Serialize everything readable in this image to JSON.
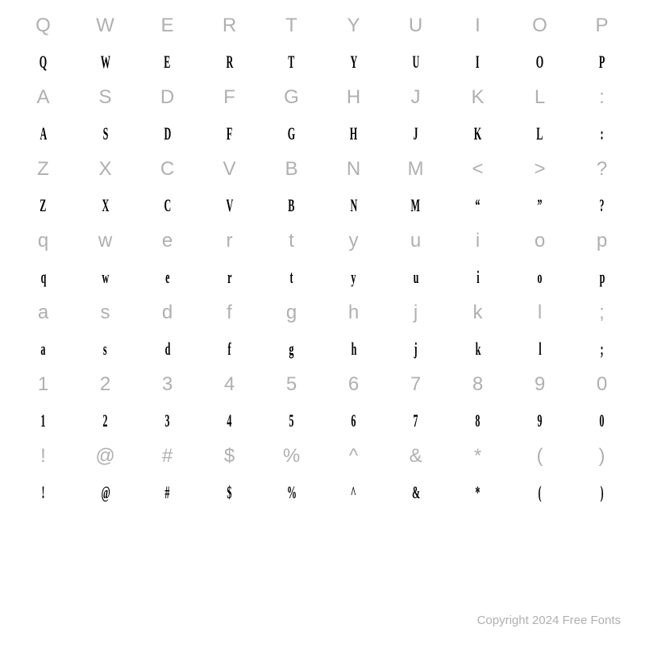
{
  "chart": {
    "type": "font-specimen-grid",
    "columns": 10,
    "background_color": "#ffffff",
    "reference_style": {
      "color": "#b0b0b0",
      "fontsize": 24,
      "fontweight": 500
    },
    "sample_style": {
      "color": "#000000",
      "fontsize": 22,
      "fontweight": 900,
      "condensed": true,
      "scale_x": 0.55
    },
    "row_height": 44.5,
    "rows": [
      {
        "type": "ref",
        "chars": [
          "Q",
          "W",
          "E",
          "R",
          "T",
          "Y",
          "U",
          "I",
          "O",
          "P"
        ]
      },
      {
        "type": "sample",
        "chars": [
          "Q",
          "W",
          "E",
          "R",
          "T",
          "Y",
          "U",
          "I",
          "O",
          "P"
        ]
      },
      {
        "type": "ref",
        "chars": [
          "A",
          "S",
          "D",
          "F",
          "G",
          "H",
          "J",
          "K",
          "L",
          ":"
        ]
      },
      {
        "type": "sample",
        "chars": [
          "A",
          "S",
          "D",
          "F",
          "G",
          "H",
          "J",
          "K",
          "L",
          ":"
        ]
      },
      {
        "type": "ref",
        "chars": [
          "Z",
          "X",
          "C",
          "V",
          "B",
          "N",
          "M",
          "<",
          ">",
          "?"
        ]
      },
      {
        "type": "sample",
        "chars": [
          "Z",
          "X",
          "C",
          "V",
          "B",
          "N",
          "M",
          "“",
          "”",
          "?"
        ]
      },
      {
        "type": "ref",
        "chars": [
          "q",
          "w",
          "e",
          "r",
          "t",
          "y",
          "u",
          "i",
          "o",
          "p"
        ]
      },
      {
        "type": "sample",
        "chars": [
          "q",
          "w",
          "e",
          "r",
          "t",
          "y",
          "u",
          "i",
          "o",
          "p"
        ]
      },
      {
        "type": "ref",
        "chars": [
          "a",
          "s",
          "d",
          "f",
          "g",
          "h",
          "j",
          "k",
          "l",
          ";"
        ]
      },
      {
        "type": "sample",
        "chars": [
          "a",
          "s",
          "d",
          "f",
          "g",
          "h",
          "j",
          "k",
          "l",
          ";"
        ]
      },
      {
        "type": "ref",
        "chars": [
          "1",
          "2",
          "3",
          "4",
          "5",
          "6",
          "7",
          "8",
          "9",
          "0"
        ]
      },
      {
        "type": "sample",
        "chars": [
          "1",
          "2",
          "3",
          "4",
          "5",
          "6",
          "7",
          "8",
          "9",
          "0"
        ]
      },
      {
        "type": "ref",
        "chars": [
          "!",
          "@",
          "#",
          "$",
          "%",
          "^",
          "&",
          "*",
          "(",
          ")"
        ]
      },
      {
        "type": "sample",
        "chars": [
          "!",
          "@",
          "#",
          "$",
          "%",
          "^",
          "&",
          "*",
          "(",
          ")"
        ]
      }
    ]
  },
  "footer": {
    "text": "Copyright 2024 Free Fonts",
    "color": "#b0b0b0",
    "fontsize": 15
  }
}
